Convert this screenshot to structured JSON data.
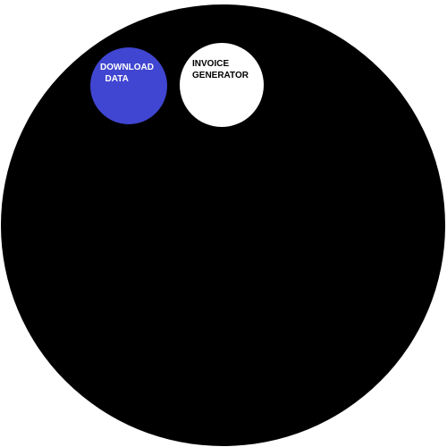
{
  "buttons": {
    "download": {
      "label": "DOWNLOAD\n  DATA",
      "color": "#4046d1",
      "text_color": "#ffffff"
    },
    "invoice": {
      "label": "INVOICE\nGENERATOR",
      "color": "#ffffff",
      "text_color": "#000000"
    }
  },
  "colors": {
    "background_disc": "#000000",
    "page": "#ffffff"
  }
}
